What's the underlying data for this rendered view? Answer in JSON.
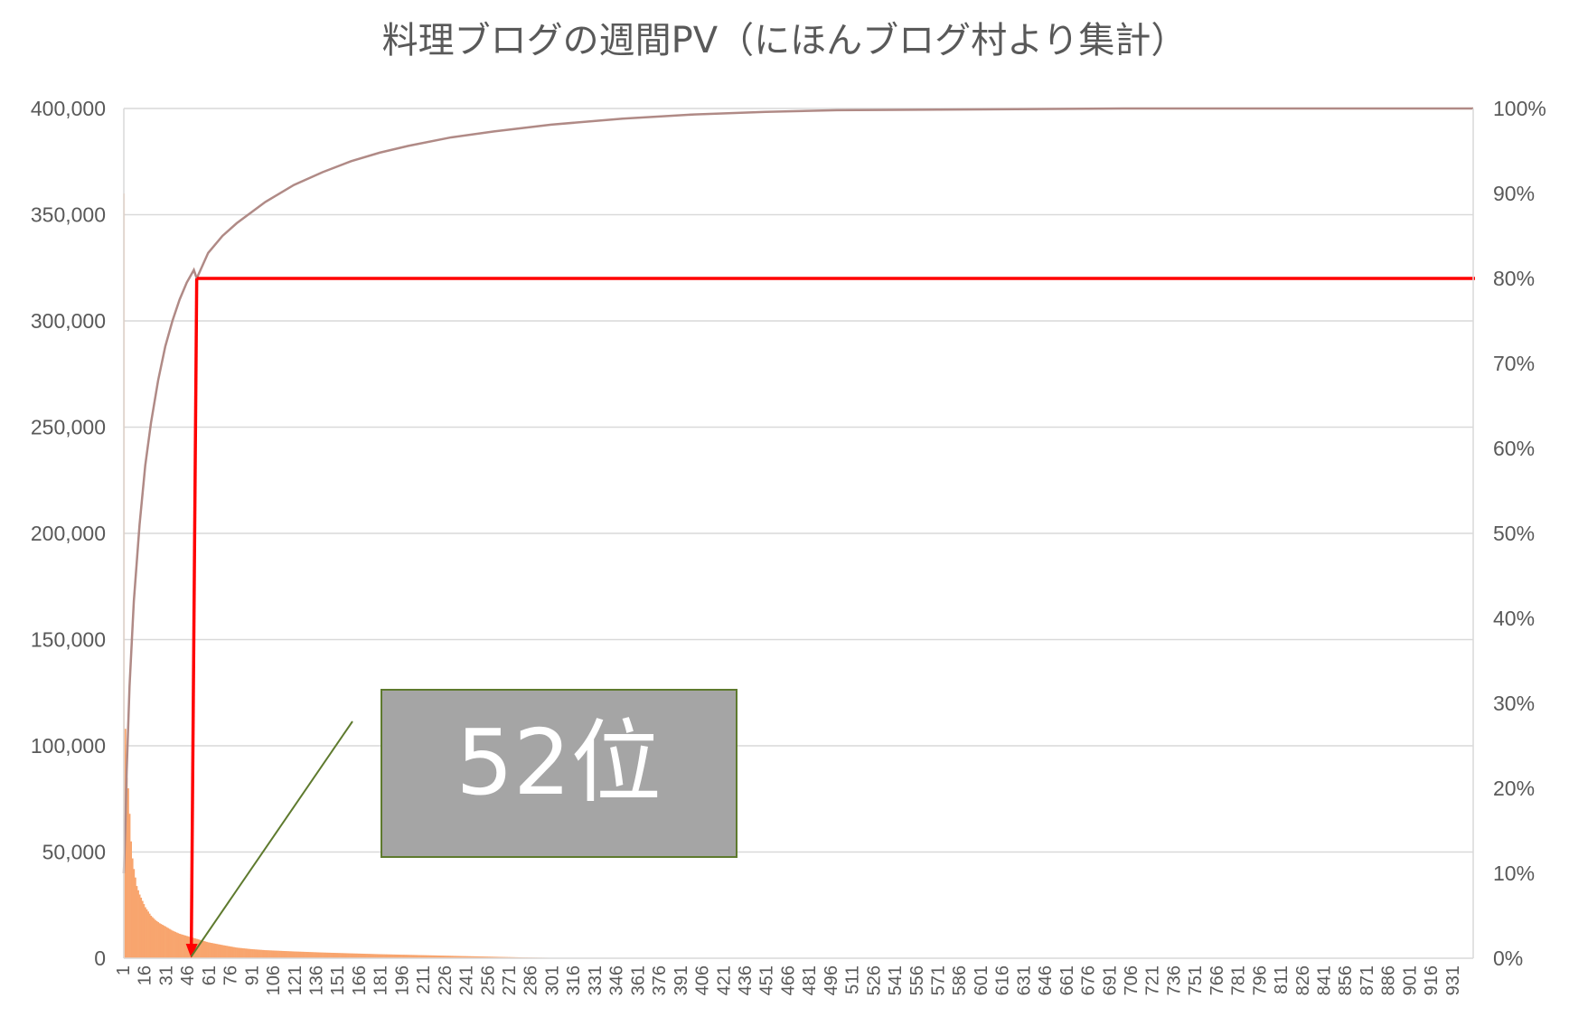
{
  "chart_data": {
    "type": "bar",
    "title": "料理ブログの週間PV（にほんブログ村より集計）",
    "xlabel": "",
    "ylabel": "",
    "y_left": {
      "range": [
        0,
        400000
      ],
      "tick_values": [
        0,
        50000,
        100000,
        150000,
        200000,
        250000,
        300000,
        350000,
        400000
      ],
      "tick_labels": [
        "0",
        "50,000",
        "100,000",
        "150,000",
        "200,000",
        "250,000",
        "300,000",
        "350,000",
        "400,000"
      ]
    },
    "y_right": {
      "range": [
        0,
        1
      ],
      "tick_values": [
        0,
        0.1,
        0.2,
        0.3,
        0.4,
        0.5,
        0.6,
        0.7,
        0.8,
        0.9,
        1.0
      ],
      "tick_labels": [
        "0%",
        "10%",
        "20%",
        "30%",
        "40%",
        "50%",
        "60%",
        "70%",
        "80%",
        "90%",
        "100%"
      ]
    },
    "x_axis": {
      "range": [
        1,
        945
      ],
      "tick_start": 1,
      "tick_step": 15,
      "tick_labels": [
        "1",
        "16",
        "31",
        "46",
        "61",
        "76",
        "91",
        "106",
        "121",
        "136",
        "151",
        "166",
        "181",
        "196",
        "211",
        "226",
        "241",
        "256",
        "271",
        "286",
        "301",
        "316",
        "331",
        "346",
        "361",
        "376",
        "391",
        "406",
        "421",
        "436",
        "451",
        "466",
        "481",
        "496",
        "511",
        "526",
        "541",
        "556",
        "571",
        "586",
        "601",
        "616",
        "631",
        "646",
        "661",
        "676",
        "691",
        "706",
        "721",
        "736",
        "751",
        "766",
        "781",
        "796",
        "811",
        "826",
        "841",
        "856",
        "871",
        "886",
        "901",
        "916",
        "931"
      ]
    },
    "grid": true,
    "legend": "none",
    "series": [
      {
        "type": "bar",
        "axis": "left",
        "color": "#F8A56E",
        "rank": [
          1,
          2,
          3,
          4,
          5,
          6,
          7,
          8,
          9,
          10,
          12,
          14,
          16,
          18,
          20,
          23,
          26,
          30,
          35,
          40,
          45,
          50,
          55,
          60,
          70,
          80,
          90,
          100,
          120,
          140,
          160,
          180,
          200,
          220,
          240,
          260,
          280,
          300,
          400,
          500,
          700,
          945
        ],
        "values": [
          360000,
          108000,
          85000,
          80000,
          68000,
          55000,
          47000,
          42000,
          38000,
          34000,
          30000,
          27000,
          24000,
          22000,
          20000,
          18000,
          16500,
          15000,
          13000,
          11500,
          10500,
          9500,
          8500,
          7500,
          6200,
          5000,
          4300,
          3800,
          3200,
          2700,
          2300,
          1900,
          1600,
          1300,
          1000,
          700,
          400,
          200,
          100,
          50,
          20,
          5
        ]
      },
      {
        "type": "line",
        "axis": "right",
        "name": "",
        "color": "#B08A86",
        "rank": [
          1,
          2,
          3,
          5,
          8,
          12,
          16,
          20,
          25,
          30,
          35,
          40,
          45,
          50,
          52,
          60,
          70,
          80,
          100,
          120,
          140,
          160,
          180,
          200,
          230,
          260,
          300,
          350,
          400,
          450,
          500,
          600,
          700,
          800,
          945
        ],
        "values": [
          0.1,
          0.15,
          0.22,
          0.32,
          0.42,
          0.51,
          0.58,
          0.63,
          0.68,
          0.72,
          0.75,
          0.775,
          0.795,
          0.81,
          0.8,
          0.83,
          0.85,
          0.865,
          0.89,
          0.91,
          0.925,
          0.938,
          0.948,
          0.956,
          0.966,
          0.973,
          0.981,
          0.988,
          0.993,
          0.996,
          0.998,
          0.999,
          1.0,
          1.0,
          1.0
        ]
      }
    ],
    "annotations": {
      "threshold_color": "#FF0000",
      "threshold_percent": 0.8,
      "threshold_rank": 52,
      "callout_text": "52位",
      "callout_fill": "#A5A5A5",
      "callout_border": "#5E7A2E",
      "pointer_color": "#5E7A2E"
    }
  }
}
